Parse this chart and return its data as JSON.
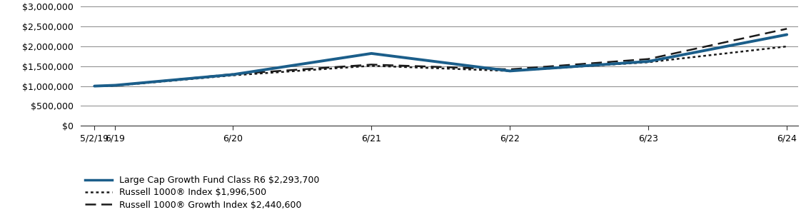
{
  "x_labels": [
    "5/2/19",
    "6/19",
    "6/20",
    "6/21",
    "6/22",
    "6/23",
    "6/24"
  ],
  "x_positions": [
    0,
    0.15,
    1,
    2,
    3,
    4,
    5
  ],
  "fund_values": [
    1000000,
    1020000,
    1290000,
    1820000,
    1380000,
    1620000,
    2293700
  ],
  "russell1000_values": [
    1000000,
    1010000,
    1270000,
    1510000,
    1380000,
    1600000,
    1996500
  ],
  "russell1000g_values": [
    1000000,
    1015000,
    1300000,
    1540000,
    1420000,
    1680000,
    2440600
  ],
  "fund_color": "#1B5E8A",
  "russell1000_color": "#1a1a1a",
  "russell1000g_color": "#1a1a1a",
  "ylim": [
    0,
    3000000
  ],
  "yticks": [
    0,
    500000,
    1000000,
    1500000,
    2000000,
    2500000,
    3000000
  ],
  "legend_labels": [
    "Large Cap Growth Fund Class R6 $2,293,700",
    "Russell 1000® Index $1,996,500",
    "Russell 1000® Growth Index $2,440,600"
  ],
  "background_color": "#ffffff",
  "grid_color": "#888888",
  "font_size": 9,
  "tick_label_fontsize": 9
}
